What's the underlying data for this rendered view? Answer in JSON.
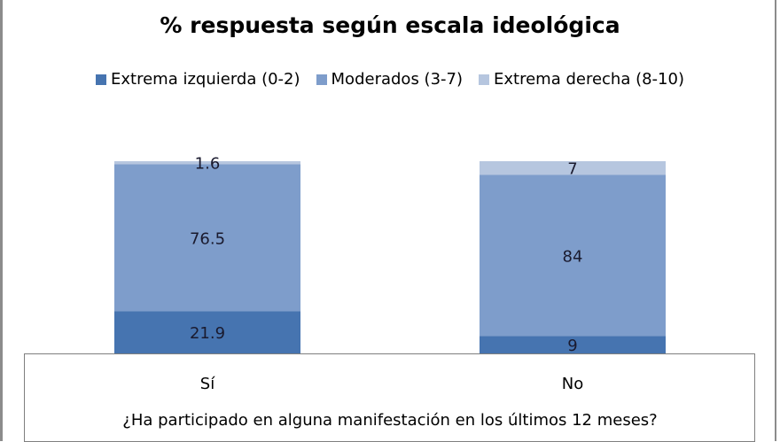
{
  "chart_data": {
    "type": "bar",
    "stacked": true,
    "title": "% respuesta según escala ideológica",
    "xlabel": "¿Ha participado en alguna manifestación en los últimos 12 meses?",
    "ylabel": "",
    "ylim": [
      0,
      100
    ],
    "categories": [
      "Sí",
      "No"
    ],
    "legend_position": "top",
    "series": [
      {
        "name": "Extrema izquierda (0-2)",
        "color": "#4674b0",
        "values": [
          21.9,
          9
        ],
        "labels": [
          "21.9",
          "9"
        ]
      },
      {
        "name": "Moderados (3-7)",
        "color": "#7e9dcb",
        "values": [
          76.5,
          84
        ],
        "labels": [
          "76.5",
          "84"
        ]
      },
      {
        "name": "Extrema derecha (8-10)",
        "color": "#b6c6df",
        "values": [
          1.6,
          7
        ],
        "labels": [
          "1.6",
          "7"
        ]
      }
    ]
  }
}
